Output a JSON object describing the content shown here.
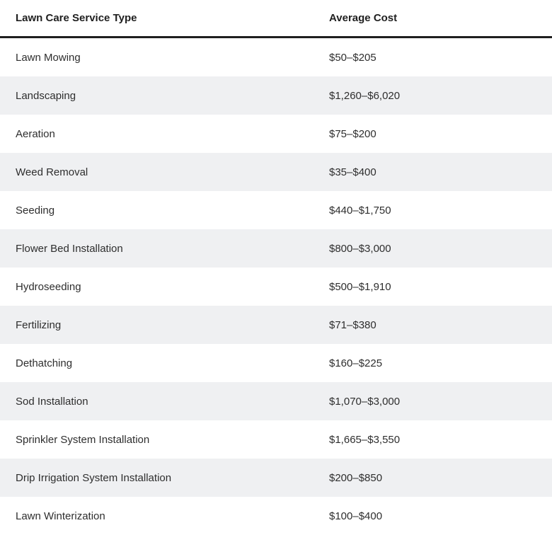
{
  "table": {
    "headers": {
      "service": "Lawn Care Service Type",
      "cost": "Average Cost"
    },
    "rows": [
      {
        "service": "Lawn Mowing",
        "cost": "$50–$205"
      },
      {
        "service": "Landscaping",
        "cost": "$1,260–$6,020"
      },
      {
        "service": "Aeration",
        "cost": "$75–$200"
      },
      {
        "service": "Weed Removal",
        "cost": "$35–$400"
      },
      {
        "service": "Seeding",
        "cost": "$440–$1,750"
      },
      {
        "service": "Flower Bed Installation",
        "cost": "$800–$3,000"
      },
      {
        "service": "Hydroseeding",
        "cost": "$500–$1,910"
      },
      {
        "service": "Fertilizing",
        "cost": "$71–$380"
      },
      {
        "service": "Dethatching",
        "cost": "$160–$225"
      },
      {
        "service": "Sod Installation",
        "cost": "$1,070–$3,000"
      },
      {
        "service": "Sprinkler System Installation",
        "cost": "$1,665–$3,550"
      },
      {
        "service": "Drip Irrigation System Installation",
        "cost": "$200–$850"
      },
      {
        "service": "Lawn Winterization",
        "cost": "$100–$400"
      }
    ]
  }
}
